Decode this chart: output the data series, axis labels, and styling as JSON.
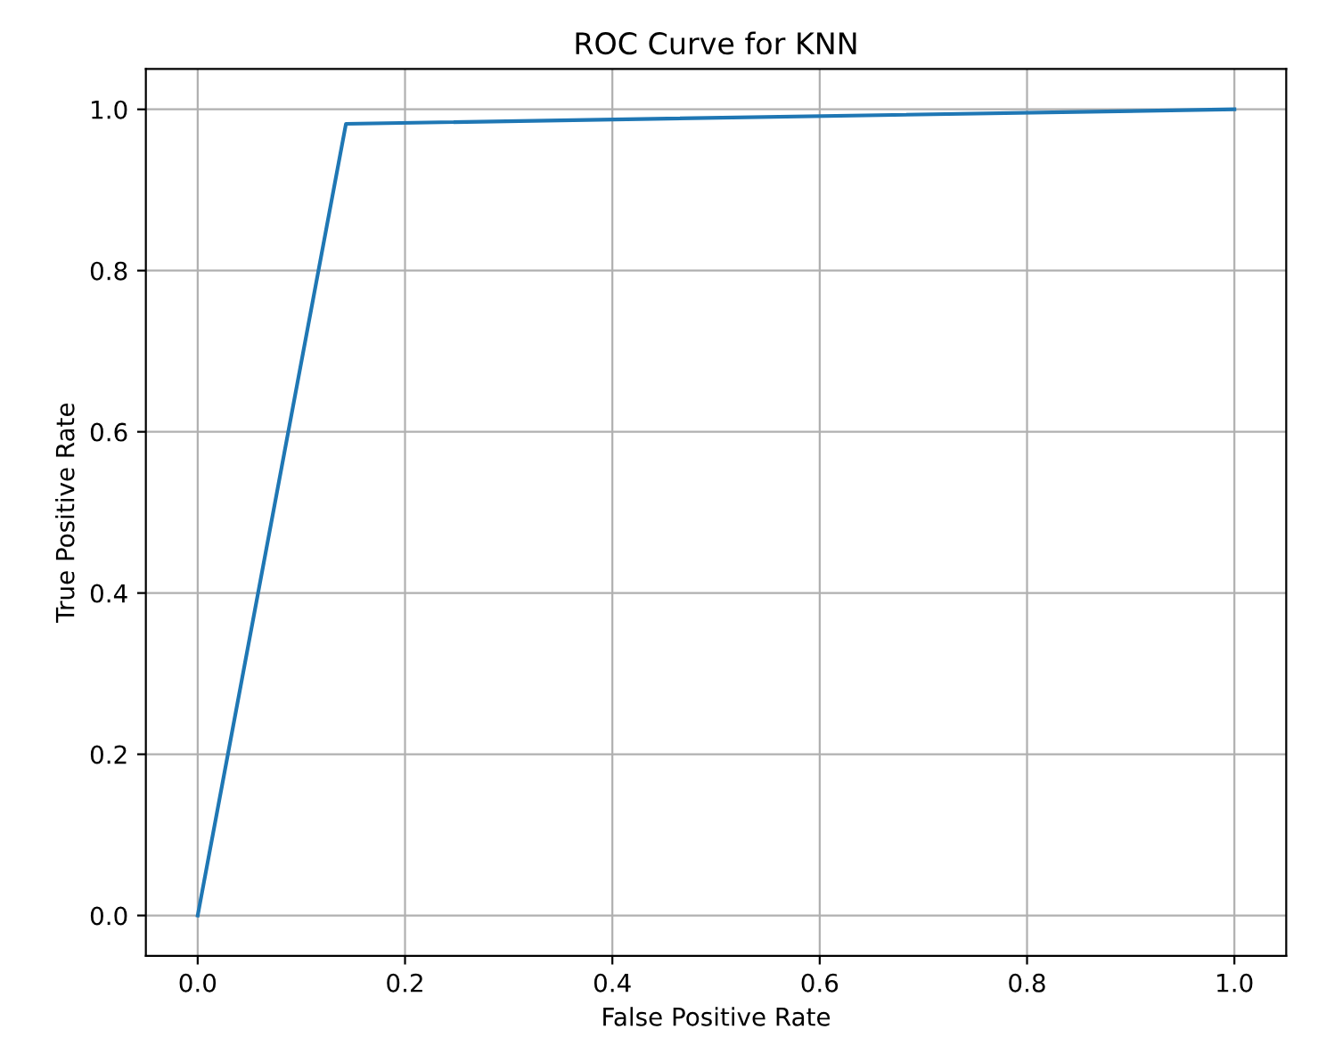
{
  "chart_data": {
    "type": "line",
    "title": "ROC Curve for KNN",
    "xlabel": "False Positive Rate",
    "ylabel": "True Positive Rate",
    "series": [
      {
        "color": "#1f77b4",
        "x": [
          0.0,
          0.143,
          1.0
        ],
        "values": [
          0.0,
          0.982,
          1.0
        ]
      }
    ],
    "xlim": [
      -0.05,
      1.05
    ],
    "ylim": [
      -0.05,
      1.05
    ],
    "xticks": [
      {
        "value": 0,
        "label": "0.0"
      },
      0.2,
      0.4,
      0.6,
      0.8,
      {
        "value": 1,
        "label": "1.0"
      }
    ],
    "yticks": [
      {
        "value": 0,
        "label": "0.0"
      },
      0.2,
      0.4,
      0.6,
      0.8,
      {
        "value": 1,
        "label": "1.0"
      }
    ],
    "grid": true,
    "marker": "none",
    "line_style": "solid"
  }
}
